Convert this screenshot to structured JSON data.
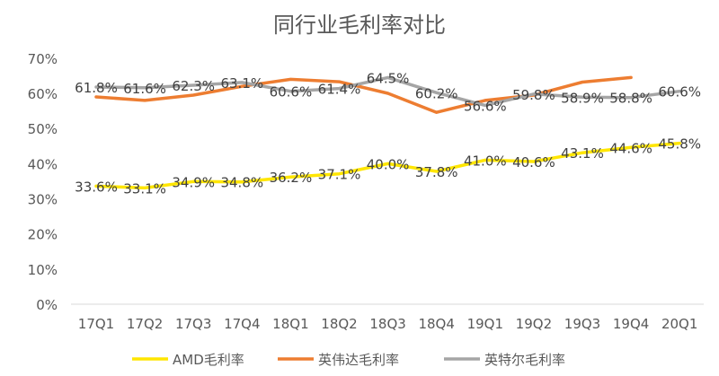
{
  "chart_data": {
    "type": "line",
    "title": "同行业毛利率对比",
    "categories": [
      "17Q1",
      "17Q2",
      "17Q3",
      "17Q4",
      "18Q1",
      "18Q2",
      "18Q3",
      "18Q4",
      "19Q1",
      "19Q2",
      "19Q3",
      "19Q4",
      "20Q1"
    ],
    "ylim": [
      0,
      70
    ],
    "yticks": [
      "0%",
      "10%",
      "20%",
      "30%",
      "40%",
      "50%",
      "60%",
      "70%"
    ],
    "grid": false,
    "legend_position": "bottom",
    "series": [
      {
        "name": "AMD毛利率",
        "color": "#ffe600",
        "values": [
          33.6,
          33.1,
          34.9,
          34.8,
          36.2,
          37.1,
          40.0,
          37.8,
          41.0,
          40.6,
          43.1,
          44.6,
          45.8
        ],
        "labels": [
          "33.6%",
          "33.1%",
          "34.9%",
          "34.8%",
          "36.2%",
          "37.1%",
          "40.0%",
          "37.8%",
          "41.0%",
          "40.6%",
          "43.1%",
          "44.6%",
          "45.8%"
        ]
      },
      {
        "name": "英伟达毛利率",
        "color": "#ed7d31",
        "values": [
          59.0,
          58.0,
          59.5,
          62.0,
          64.0,
          63.3,
          60.0,
          54.6,
          58.0,
          59.5,
          63.2,
          64.5,
          null
        ],
        "labels": []
      },
      {
        "name": "英特尔毛利率",
        "color": "#a5a5a5",
        "values": [
          61.8,
          61.6,
          62.3,
          63.1,
          60.6,
          61.4,
          64.5,
          60.2,
          56.6,
          59.8,
          58.9,
          58.8,
          60.6
        ],
        "labels": [
          "61.8%",
          "61.6%",
          "62.3%",
          "63.1%",
          "60.6%",
          "61.4%",
          "64.5%",
          "60.2%",
          "56.6%",
          "59.8%",
          "58.9%",
          "58.8%",
          "60.6%"
        ]
      }
    ]
  }
}
